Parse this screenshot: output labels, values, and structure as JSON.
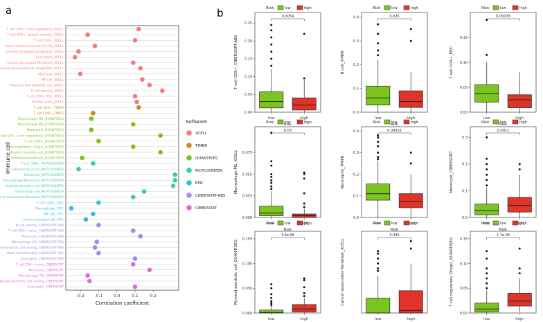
{
  "panel_labels": {
    "a": "a",
    "b": "b"
  },
  "colors": {
    "low": "#7cc41f",
    "high": "#e0342a",
    "XCELL": "#f47b7b",
    "TIMER": "#c98a1a",
    "QUANTISEQ": "#7fbf1f",
    "MCPCOUNTER": "#3dcca7",
    "EPIC": "#39b9e6",
    "CIBERSORT-ABS": "#9b8de8",
    "CIBERSORT": "#e06ad6"
  },
  "chart_data": [
    {
      "type": "scatter",
      "title": "",
      "xlabel": "Correlation coefficient",
      "ylabel": "Immune cell",
      "xlim": [
        -0.28,
        0.34
      ],
      "xticks": [
        -0.2,
        -0.1,
        0.0,
        0.1,
        0.2
      ],
      "xticklabels": [
        "-0.2",
        "-0.1",
        "0.0",
        "0.1",
        "0.2"
      ],
      "legend": {
        "title": "Software",
        "position": "right",
        "entries": [
          "XCELL",
          "TIMER",
          "QUANTISEQ",
          "MCPCOUNTER",
          "EPIC",
          "CIBERSORT-ABS",
          "CIBERSORT"
        ]
      },
      "points": [
        {
          "label": "T cell CD4+ (non-regulatory)_XCELL",
          "software": "XCELL",
          "x": 0.12
        },
        {
          "label": "T cell CD4+ central memory_XCELL",
          "software": "XCELL",
          "x": -0.16
        },
        {
          "label": "T cell CD4+_XCELL",
          "software": "XCELL",
          "x": 0.1
        },
        {
          "label": "Class-switched memory B cell_XCELL",
          "software": "XCELL",
          "x": -0.12
        },
        {
          "label": "Common lymphoid progenitor_XCELL",
          "software": "XCELL",
          "x": -0.21
        },
        {
          "label": "Eosinophil_XCELL",
          "software": "XCELL",
          "x": -0.23
        },
        {
          "label": "Cancer associated fibroblast_XCELL",
          "software": "XCELL",
          "x": 0.09
        },
        {
          "label": "Granulocyte-monocyte progenitor_XCELL",
          "software": "XCELL",
          "x": 0.13
        },
        {
          "label": "Mast cell_XCELL",
          "software": "XCELL",
          "x": -0.2
        },
        {
          "label": "NK cell_XCELL",
          "software": "XCELL",
          "x": 0.14
        },
        {
          "label": "Plasmacytoid dendritic cell_XCELL",
          "software": "XCELL",
          "x": 0.18
        },
        {
          "label": "B cell plasma_XCELL",
          "software": "XCELL",
          "x": 0.25
        },
        {
          "label": "T cell CD4+ Th2_XCELL",
          "software": "XCELL",
          "x": 0.1
        },
        {
          "label": "stroma score_XCELL",
          "software": "XCELL",
          "x": 0.11
        },
        {
          "label": "T cell CD4+_TIMER",
          "software": "TIMER",
          "x": 0.12
        },
        {
          "label": "T cell CD8+_TIMER",
          "software": "TIMER",
          "x": -0.13
        },
        {
          "label": "Macrophage M1_QUANTISEQ",
          "software": "QUANTISEQ",
          "x": -0.14
        },
        {
          "label": "Macrophage M2_QUANTISEQ",
          "software": "QUANTISEQ",
          "x": 0.09
        },
        {
          "label": "Neutrophil_QUANTISEQ",
          "software": "QUANTISEQ",
          "x": -0.14
        },
        {
          "label": "T cell CD4+ (non-regulatory)_QUANTISEQ",
          "software": "QUANTISEQ",
          "x": 0.24
        },
        {
          "label": "T cell CD8+_QUANTISEQ",
          "software": "QUANTISEQ",
          "x": -0.1
        },
        {
          "label": "T cell regulatory (Tregs)_QUANTISEQ",
          "software": "QUANTISEQ",
          "x": 0.09
        },
        {
          "label": "Myeloid dendritic cell_QUANTISEQ",
          "software": "QUANTISEQ",
          "x": 0.24
        },
        {
          "label": "uncharacterized cell_QUANTISEQ",
          "software": "QUANTISEQ",
          "x": -0.19
        },
        {
          "label": "T cell CD8+_MCPCOUNTER",
          "software": "MCPCOUNTER",
          "x": -0.13
        },
        {
          "label": "cytotoxicity score_MCPCOUNTER",
          "software": "MCPCOUNTER",
          "x": -0.21
        },
        {
          "label": "Monocyte_MCPCOUNTER",
          "software": "MCPCOUNTER",
          "x": 0.32
        },
        {
          "label": "Macrophage/Monocyte_MCPCOUNTER",
          "software": "MCPCOUNTER",
          "x": 0.32
        },
        {
          "label": "Myeloid dendritic cell_MCPCOUNTER",
          "software": "MCPCOUNTER",
          "x": 0.31
        },
        {
          "label": "Endothelial cell_MCPCOUNTER",
          "software": "MCPCOUNTER",
          "x": 0.15
        },
        {
          "label": "Cancer associated fibroblast_MCPCOUNTER",
          "software": "MCPCOUNTER",
          "x": 0.09
        },
        {
          "label": "T cell CD8+_EPIC",
          "software": "EPIC",
          "x": -0.1
        },
        {
          "label": "Macrophage_EPIC",
          "software": "EPIC",
          "x": -0.25
        },
        {
          "label": "NK cell_EPIC",
          "software": "EPIC",
          "x": -0.13
        },
        {
          "label": "uncharacterized cell_EPIC",
          "software": "EPIC",
          "x": -0.17
        },
        {
          "label": "B cell plasma_CIBERSORT-ABS",
          "software": "CIBERSORT-ABS",
          "x": -0.1
        },
        {
          "label": "T cell CD4+ naive_CIBERSORT-ABS",
          "software": "CIBERSORT-ABS",
          "x": 0.09
        },
        {
          "label": "Monocyte_CIBERSORT-ABS",
          "software": "CIBERSORT-ABS",
          "x": 0.13
        },
        {
          "label": "Macrophage M2_CIBERSORT-ABS",
          "software": "CIBERSORT-ABS",
          "x": -0.11
        },
        {
          "label": "Myeloid dendritic cell resting_CIBERSORT-ABS",
          "software": "CIBERSORT-ABS",
          "x": -0.12
        },
        {
          "label": "Mast cell activated_CIBERSORT-ABS",
          "software": "CIBERSORT-ABS",
          "x": -0.1
        },
        {
          "label": "Eosinophil_CIBERSORT-ABS",
          "software": "CIBERSORT-ABS",
          "x": 0.1
        },
        {
          "label": "T cell CD4+ naive_CIBERSORT",
          "software": "CIBERSORT",
          "x": 0.09
        },
        {
          "label": "Monocyte_CIBERSORT",
          "software": "CIBERSORT",
          "x": 0.18
        },
        {
          "label": "Macrophage M2_CIBERSORT",
          "software": "CIBERSORT",
          "x": -0.16
        },
        {
          "label": "Myeloid dendritic cell resting_CIBERSORT",
          "software": "CIBERSORT",
          "x": -0.15
        },
        {
          "label": "Eosinophil_CIBERSORT",
          "software": "CIBERSORT",
          "x": 0.1
        }
      ]
    },
    {
      "type": "box",
      "ylabel": "T cell CD8+_CIBERSORT-ABS",
      "xlabel": "Risk",
      "pvalue": "0.0054",
      "legend": {
        "title": "Risk",
        "entries": [
          "low",
          "high"
        ]
      },
      "ylim": [
        0,
        0.28
      ],
      "yticks": [
        0.0,
        0.05,
        0.1,
        0.15,
        0.2,
        0.25
      ],
      "yticklabels": [
        "0.00",
        "0.05",
        "0.10",
        "0.15",
        "0.20",
        "0.25"
      ],
      "groups": [
        {
          "name": "low",
          "min": 0,
          "q1": 0.012,
          "median": 0.03,
          "q3": 0.057,
          "max": 0.12,
          "outliers": [
            0.13,
            0.15,
            0.17,
            0.19,
            0.21,
            0.23,
            0.245
          ]
        },
        {
          "name": "high",
          "min": 0,
          "q1": 0.006,
          "median": 0.02,
          "q3": 0.04,
          "max": 0.09,
          "outliers": [
            0.095,
            0.22
          ]
        }
      ]
    },
    {
      "type": "box",
      "ylabel": "B cell_TIMER",
      "xlabel": "Risk",
      "pvalue": "0.025",
      "legend": {
        "title": "Risk",
        "entries": [
          "low",
          "high"
        ]
      },
      "ylim": [
        0,
        0.42
      ],
      "yticks": [
        0.0,
        0.1,
        0.2,
        0.3,
        0.4
      ],
      "yticklabels": [
        "0.0",
        "0.1",
        "0.2",
        "0.3",
        "0.4"
      ],
      "groups": [
        {
          "name": "low",
          "min": 0,
          "q1": 0.03,
          "median": 0.06,
          "q3": 0.11,
          "max": 0.22,
          "outliers": [
            0.24,
            0.26,
            0.29,
            0.33,
            0.37
          ]
        },
        {
          "name": "high",
          "min": 0,
          "q1": 0.02,
          "median": 0.045,
          "q3": 0.09,
          "max": 0.17,
          "outliers": [
            0.3,
            0.35
          ]
        }
      ]
    },
    {
      "type": "box",
      "ylabel": "T cell CD4+_EPIC",
      "xlabel": "Risk",
      "pvalue": "0.00033",
      "legend": {
        "title": "Risk",
        "entries": [
          "low",
          "high"
        ]
      },
      "ylim": [
        0,
        0.2
      ],
      "yticks": [
        0.0,
        0.05,
        0.1,
        0.15
      ],
      "yticklabels": [
        "0.00",
        "0.05",
        "0.10",
        "0.15"
      ],
      "groups": [
        {
          "name": "low",
          "min": 0,
          "q1": 0.02,
          "median": 0.037,
          "q3": 0.055,
          "max": 0.1,
          "outliers": [
            0.115,
            0.185
          ]
        },
        {
          "name": "high",
          "min": 0,
          "q1": 0.009,
          "median": 0.025,
          "q3": 0.035,
          "max": 0.08,
          "outliers": []
        }
      ]
    },
    {
      "type": "box",
      "ylabel": "Macrophage M1_XCELL",
      "xlabel": "Risk",
      "pvalue": "0.03",
      "legend": {
        "title": "Risk",
        "entries": [
          "low",
          "high"
        ]
      },
      "ylim": [
        0,
        0.105
      ],
      "yticks": [
        0.0,
        0.025,
        0.05,
        0.075
      ],
      "yticklabels": [
        "0.000",
        "0.025",
        "0.050",
        "0.075"
      ],
      "groups": [
        {
          "name": "low",
          "min": 0,
          "q1": 0.002,
          "median": 0.005,
          "q3": 0.013,
          "max": 0.03,
          "outliers": [
            0.033,
            0.036,
            0.04,
            0.043,
            0.047,
            0.05,
            0.06,
            0.065,
            0.098
          ]
        },
        {
          "name": "high",
          "min": 0,
          "q1": 0.0,
          "median": 0.002,
          "q3": 0.004,
          "max": 0.01,
          "outliers": [
            0.012,
            0.016,
            0.028,
            0.045,
            0.05,
            0.052
          ]
        }
      ]
    },
    {
      "type": "box",
      "ylabel": "Neutrophil_TIMER",
      "xlabel": "Risk",
      "pvalue": "0.00022",
      "legend": {
        "title": "Risk",
        "entries": [
          "low",
          "high"
        ]
      },
      "ylim": [
        0,
        0.42
      ],
      "yticks": [
        0.0,
        0.1,
        0.2,
        0.3,
        0.4
      ],
      "yticklabels": [
        "0.0",
        "0.1",
        "0.2",
        "0.3",
        "0.4"
      ],
      "groups": [
        {
          "name": "low",
          "min": 0,
          "q1": 0.08,
          "median": 0.11,
          "q3": 0.155,
          "max": 0.26,
          "outliers": [
            0.27,
            0.28,
            0.3,
            0.33,
            0.35,
            0.37,
            0.38
          ]
        },
        {
          "name": "high",
          "min": 0,
          "q1": 0.045,
          "median": 0.075,
          "q3": 0.11,
          "max": 0.2,
          "outliers": [
            0.25,
            0.3
          ]
        }
      ]
    },
    {
      "type": "box",
      "ylabel": "Monocyte_CIBERSORT",
      "xlabel": "Risk",
      "pvalue": "0.0011",
      "legend": {
        "title": "Risk",
        "entries": [
          "low",
          "high"
        ]
      },
      "ylim": [
        0,
        0.34
      ],
      "yticks": [
        0.0,
        0.1,
        0.2,
        0.3
      ],
      "yticklabels": [
        "0.0",
        "0.1",
        "0.2",
        "0.3"
      ],
      "groups": [
        {
          "name": "low",
          "min": 0,
          "q1": 0.01,
          "median": 0.025,
          "q3": 0.05,
          "max": 0.11,
          "outliers": [
            0.12,
            0.14,
            0.16,
            0.18,
            0.2,
            0.22,
            0.3
          ]
        },
        {
          "name": "high",
          "min": 0,
          "q1": 0.02,
          "median": 0.045,
          "q3": 0.075,
          "max": 0.16,
          "outliers": [
            0.18,
            0.2
          ]
        }
      ]
    },
    {
      "type": "box",
      "ylabel": "Myeloid dendritic cell_QUANTISEQ",
      "xlabel": "Risk",
      "pvalue": "3.6e-06",
      "legend": {
        "title": "Risk",
        "entries": [
          "low",
          "high"
        ]
      },
      "ylim": [
        0,
        0.165
      ],
      "yticks": [
        0.0,
        0.05,
        0.1,
        0.15
      ],
      "yticklabels": [
        "0.000",
        "0.050",
        "0.100",
        "0.150"
      ],
      "groups": [
        {
          "name": "low",
          "min": 0,
          "q1": 0.0,
          "median": 0.001,
          "q3": 0.006,
          "max": 0.014,
          "outliers": [
            0.016,
            0.02,
            0.024,
            0.03,
            0.038,
            0.05,
            0.058
          ]
        },
        {
          "name": "high",
          "min": 0,
          "q1": 0.002,
          "median": 0.008,
          "q3": 0.017,
          "max": 0.03,
          "outliers": [
            0.034,
            0.04,
            0.052,
            0.066,
            0.07
          ]
        }
      ]
    },
    {
      "type": "box",
      "ylabel": "Cancer associated fibroblast_XCELL",
      "xlabel": "Risk",
      "pvalue": "0.035",
      "legend": {
        "title": "Risk",
        "entries": [
          "low",
          "high"
        ]
      },
      "ylim": [
        0,
        0.165
      ],
      "yticks": [],
      "yticklabels": [],
      "groups": [
        {
          "name": "low",
          "min": 0,
          "q1": 0.0,
          "median": 0.0,
          "q3": 0.03,
          "max": 0.075,
          "outliers": [
            0.085,
            0.09,
            0.1,
            0.11,
            0.12,
            0.125
          ]
        },
        {
          "name": "high",
          "min": 0,
          "q1": 0.0,
          "median": 0.005,
          "q3": 0.045,
          "max": 0.1,
          "outliers": [
            0.13,
            0.145
          ]
        }
      ]
    },
    {
      "type": "box",
      "ylabel": "T cell regulatory (Tregs)_QUANTISEQ",
      "xlabel": "Risk",
      "pvalue": "1.7e-06",
      "legend": {
        "title": "Risk",
        "entries": [
          "low",
          "high"
        ]
      },
      "ylim": [
        0,
        0.165
      ],
      "yticks": [
        0.0,
        0.05,
        0.1,
        0.15
      ],
      "yticklabels": [
        "0.00",
        "0.05",
        "0.10",
        "0.15"
      ],
      "groups": [
        {
          "name": "low",
          "min": 0,
          "q1": 0.002,
          "median": 0.008,
          "q3": 0.02,
          "max": 0.045,
          "outliers": [
            0.05,
            0.06,
            0.07,
            0.08,
            0.09,
            0.11,
            0.125
          ]
        },
        {
          "name": "high",
          "min": 0.002,
          "q1": 0.014,
          "median": 0.024,
          "q3": 0.04,
          "max": 0.07,
          "outliers": [
            0.08,
            0.09,
            0.13
          ]
        }
      ]
    }
  ]
}
